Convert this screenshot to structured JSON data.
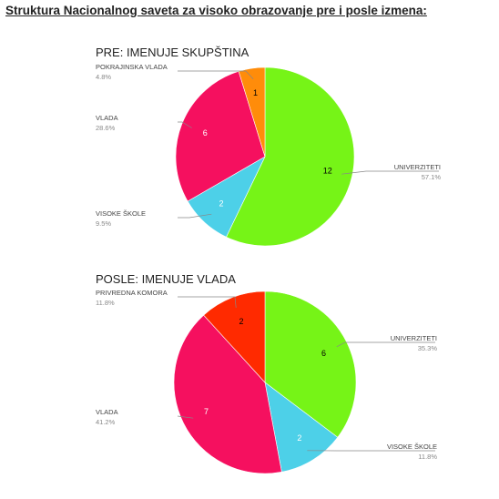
{
  "page_title": "Struktura Nacionalnog saveta za visoko obrazovanje pre i posle izmena:",
  "chart_data": [
    {
      "type": "pie",
      "title": "PRE: IMENUJE SKUPŠTINA",
      "slices": [
        {
          "label": "UNIVERZITETI",
          "value": 12,
          "percent": "57.1%",
          "color": "#76f417"
        },
        {
          "label": "VISOKE ŠKOLE",
          "value": 2,
          "percent": "9.5%",
          "color": "#4dd0e8"
        },
        {
          "label": "VLADA",
          "value": 6,
          "percent": "28.6%",
          "color": "#f5105f"
        },
        {
          "label": "POKRAJINSKA VLADA",
          "value": 1,
          "percent": "4.8%",
          "color": "#ff8c0a"
        }
      ]
    },
    {
      "type": "pie",
      "title": "POSLE: IMENUJE VLADA",
      "slices": [
        {
          "label": "UNIVERZITETI",
          "value": 6,
          "percent": "35.3%",
          "color": "#76f417"
        },
        {
          "label": "VISOKE ŠKOLE",
          "value": 2,
          "percent": "11.8%",
          "color": "#4dd0e8"
        },
        {
          "label": "VLADA",
          "value": 7,
          "percent": "41.2%",
          "color": "#f5105f"
        },
        {
          "label": "PRIVREDNA KOMORA",
          "value": 2,
          "percent": "11.8%",
          "color": "#ff2a00"
        }
      ]
    }
  ]
}
